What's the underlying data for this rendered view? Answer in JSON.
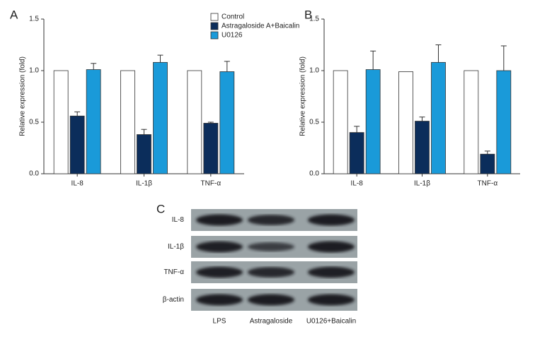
{
  "chart_data": [
    {
      "type": "bar",
      "panel": "A",
      "ylabel": "Relative expression (fold)",
      "categories": [
        "IL-8",
        "IL-1β",
        "TNF-α"
      ],
      "series": [
        {
          "name": "Control",
          "color": "#ffffff",
          "values": [
            1.0,
            1.0,
            1.0
          ]
        },
        {
          "name": "Astragaloside A+Baicalin",
          "color": "#0b2d5b",
          "values": [
            0.56,
            0.38,
            0.49
          ],
          "errors": [
            0.04,
            0.05,
            0.01
          ]
        },
        {
          "name": "U0126",
          "color": "#1a9ad9",
          "values": [
            1.01,
            1.08,
            0.99
          ],
          "errors": [
            0.06,
            0.07,
            0.1
          ]
        }
      ],
      "ylim": [
        0,
        1.5
      ],
      "yticks": [
        {
          "value": 0,
          "label": "0.0"
        },
        0.5,
        {
          "value": 1,
          "label": "1.0"
        },
        1.5
      ],
      "legend": "top-right"
    },
    {
      "type": "bar",
      "panel": "B",
      "ylabel": "Relative expression (fold)",
      "categories": [
        "IL-8",
        "IL-1β",
        "TNF-α"
      ],
      "series": [
        {
          "color": "#ffffff",
          "values": [
            1.0,
            0.99,
            1.0
          ]
        },
        {
          "color": "#0b2d5b",
          "values": [
            0.4,
            0.51,
            0.19
          ],
          "errors": [
            0.06,
            0.04,
            0.03
          ]
        },
        {
          "color": "#1a9ad9",
          "values": [
            1.01,
            1.08,
            1.0
          ],
          "errors": [
            0.18,
            0.17,
            0.24
          ]
        }
      ],
      "ylim": [
        0,
        1.5
      ],
      "yticks": [
        {
          "value": 0,
          "label": "0.0"
        },
        0.5,
        {
          "value": 1,
          "label": "1.0"
        },
        1.5
      ]
    }
  ],
  "blot": {
    "panel": "C",
    "rows": [
      "IL-8",
      "IL-1β",
      "TNF-α",
      "β-actin"
    ],
    "lanes": [
      "LPS",
      "Astragaloside",
      "U0126+Baicalin"
    ]
  }
}
